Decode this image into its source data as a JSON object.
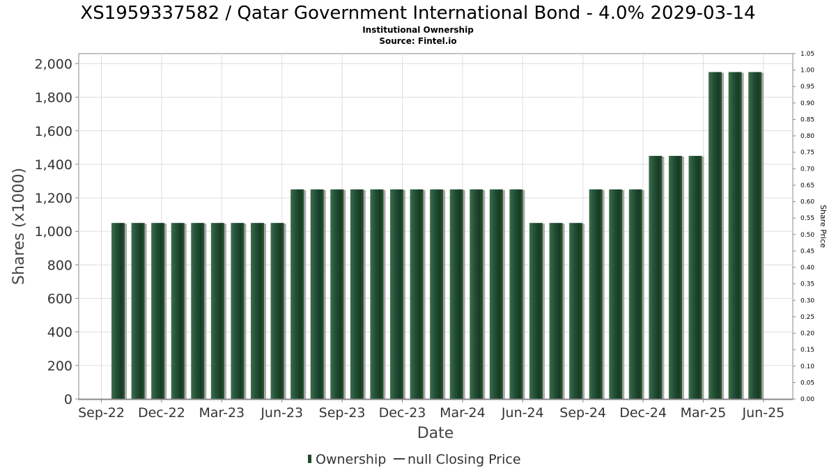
{
  "chart_data": {
    "type": "bar",
    "title": "XS1959337582 / Qatar Government International Bond - 4.0% 2029-03-14",
    "subtitle": "Institutional Ownership",
    "source": "Source: Fintel.io",
    "xlabel": "Date",
    "ylabel": "Shares (x1000)",
    "y2label": "Share Price",
    "ylim": [
      0,
      2060
    ],
    "y2lim": [
      0,
      1.05
    ],
    "yticks": [
      "0",
      "200",
      "400",
      "600",
      "800",
      "1,000",
      "1,200",
      "1,400",
      "1,600",
      "1,800",
      "2,000"
    ],
    "y2ticks": [
      "0.00",
      "0.05",
      "0.10",
      "0.15",
      "0.20",
      "0.25",
      "0.30",
      "0.35",
      "0.40",
      "0.45",
      "0.50",
      "0.55",
      "0.60",
      "0.65",
      "0.70",
      "0.75",
      "0.80",
      "0.85",
      "0.90",
      "0.95",
      "1.00",
      "1.05"
    ],
    "xticks": [
      "Sep-22",
      "Dec-22",
      "Mar-23",
      "Jun-23",
      "Sep-23",
      "Dec-23",
      "Mar-24",
      "Jun-24",
      "Sep-24",
      "Dec-24",
      "Mar-25",
      "Jun-25"
    ],
    "grid": true,
    "legend_position": "bottom-center",
    "series": [
      {
        "name": "Ownership",
        "color": "#1e4a2c",
        "values": [
          1050,
          1050,
          1050,
          1050,
          1050,
          1050,
          1050,
          1050,
          1050,
          1250,
          1250,
          1250,
          1250,
          1250,
          1250,
          1250,
          1250,
          1250,
          1250,
          1250,
          1250,
          1050,
          1050,
          1050,
          1250,
          1250,
          1250,
          1450,
          1450,
          1450,
          1950,
          1950,
          1950
        ]
      },
      {
        "name": "null Closing Price",
        "color": "#000000",
        "values": []
      }
    ]
  }
}
